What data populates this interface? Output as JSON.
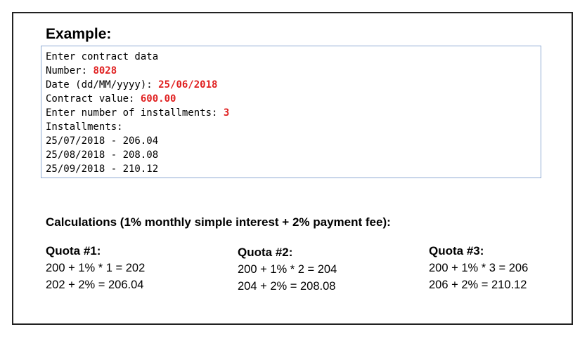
{
  "heading": "Example:",
  "console": {
    "lines": [
      {
        "label": "Enter contract data",
        "value": ""
      },
      {
        "label": "Number: ",
        "value": "8028"
      },
      {
        "label": "Date (dd/MM/yyyy): ",
        "value": "25/06/2018"
      },
      {
        "label": "Contract value: ",
        "value": "600.00"
      },
      {
        "label": "Enter number of installments: ",
        "value": "3"
      },
      {
        "label": "Installments:",
        "value": ""
      },
      {
        "label": "25/07/2018 - 206.04",
        "value": ""
      },
      {
        "label": "25/08/2018 - 208.08",
        "value": ""
      },
      {
        "label": "25/09/2018 - 210.12",
        "value": ""
      }
    ],
    "input_color": "#e02020"
  },
  "calculations": {
    "title": "Calculations (1% monthly simple interest + 2% payment fee):",
    "quotas": [
      {
        "title": "Quota #1:",
        "line1": "200 + 1% * 1 = 202",
        "line2": "202 + 2% = 206.04"
      },
      {
        "title": "Quota #2:",
        "line1": "200 + 1% * 2 = 204",
        "line2": "204 + 2% = 208.08"
      },
      {
        "title": "Quota #3:",
        "line1": "200 + 1% * 3 = 206",
        "line2": "206 + 2% = 210.12"
      }
    ]
  }
}
